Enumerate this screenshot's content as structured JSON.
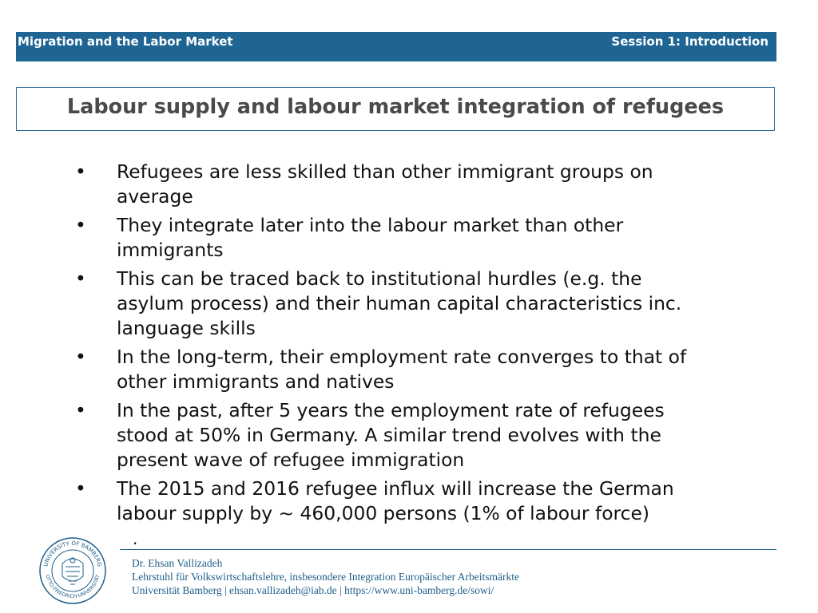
{
  "header": {
    "course": "Migration and the Labor Market",
    "session": "Session 1: Introduction"
  },
  "slide": {
    "title": "Labour supply and labour market integration of refugees",
    "bullet_symbol": "•",
    "bullets": [
      {
        "line1": "Refugees are less skilled than other immigrant groups on",
        "line2": "average",
        "line3": ""
      },
      {
        "line1": "They integrate later into the labour market than other",
        "line2": "immigrants",
        "line3": ""
      },
      {
        "line1": "This can be traced back to institutional hurdles (e.g. the",
        "line2": "asylum process) and their human capital characteristics inc.",
        "line3": "language skills"
      },
      {
        "line1": "In the long-term, their employment rate converges to that of",
        "line2": "other immigrants and natives",
        "line3": ""
      },
      {
        "line1": "In the past, after 5 years the employment rate of refugees",
        "line2": "stood at 50% in Germany. A similar trend evolves with the",
        "line3": "present wave of refugee immigration"
      },
      {
        "line1": "The 2015 and 2016 refugee influx will increase the German",
        "line2": "labour supply by ~ 460,000 persons (1% of labour force)",
        "line3": ""
      }
    ],
    "trailing_mark": "."
  },
  "footer": {
    "name": "Dr. Ehsan Vallizadeh",
    "chair": "Lehrstuhl für Volkswirtschaftslehre, insbesondere Integration Europäischer Arbeitsmärkte",
    "contact": "Universität Bamberg | ehsan.vallizadeh@iab.de | https://www.uni-bamberg.de/sowi/",
    "seal_top_text": "UNIVERSITY OF BAMBERG",
    "seal_bottom_text": "OTTO-FRIEDRICH-UNIVERSITÄT",
    "colors": {
      "accent": "#1e6594",
      "footer_text": "#1e5f8a",
      "title_text": "#4a4a4a"
    }
  }
}
